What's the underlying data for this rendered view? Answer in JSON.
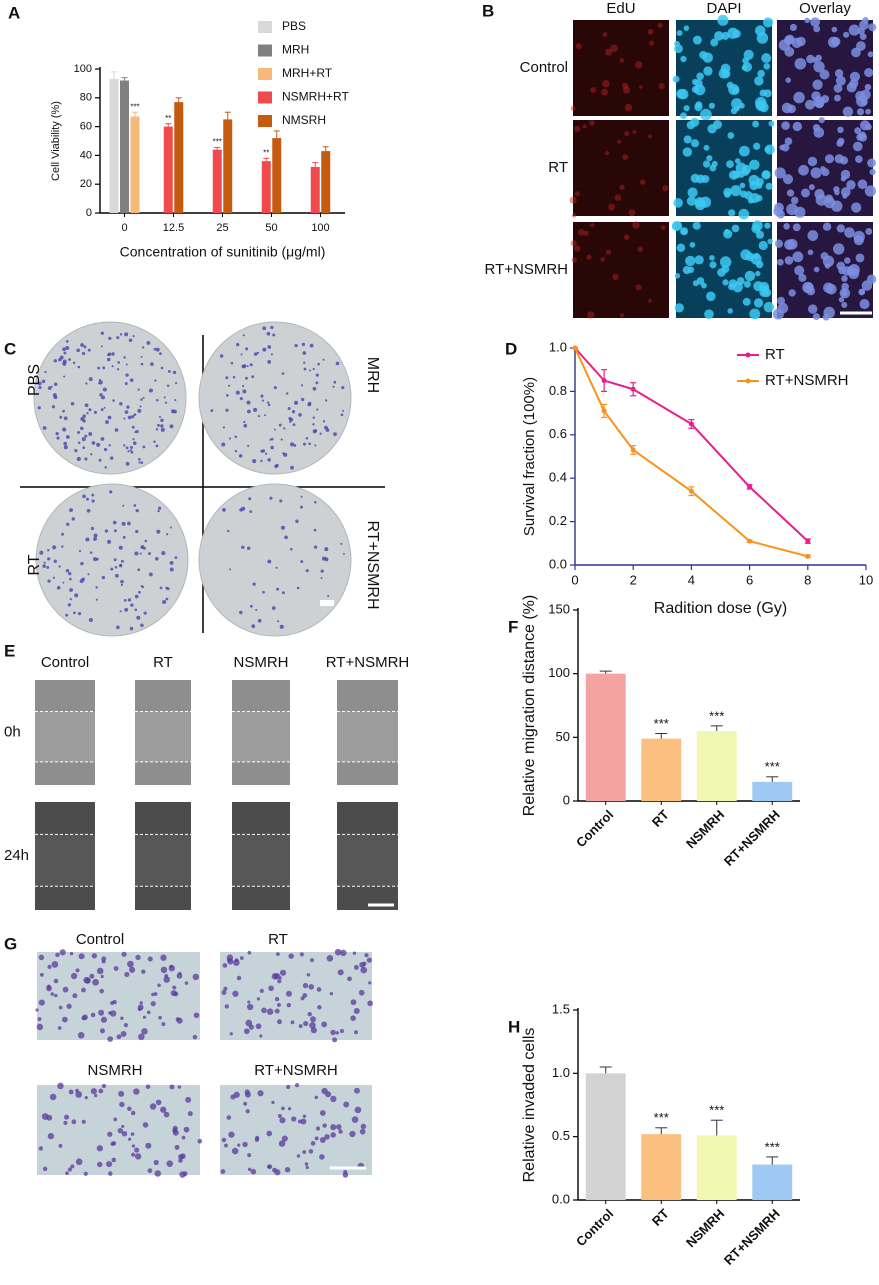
{
  "images": {
    "B": {
      "label": "B",
      "columns": [
        "EdU",
        "DAPI",
        "Overlay"
      ],
      "rows": [
        "Control",
        "RT",
        "RT+NSMRH"
      ]
    },
    "C": {
      "label": "C",
      "groups": [
        "PBS",
        "MRH",
        "RT",
        "RT+NSMRH"
      ]
    },
    "E": {
      "label": "E",
      "columns": [
        "Control",
        "RT",
        "NSMRH",
        "RT+NSMRH"
      ],
      "rows": [
        "0h",
        "24h"
      ]
    },
    "G": {
      "label": "G",
      "groups": [
        "Control",
        "RT",
        "NSMRH",
        "RT+NSMRH"
      ]
    }
  },
  "chart_data": [
    {
      "type": "grouped_bar",
      "panel_label": "A",
      "y_label": "Cell Viability (%)",
      "x_label": "Concentration of sunitinib (μg/ml)",
      "categories": [
        "0",
        "12.5",
        "25",
        "50",
        "100"
      ],
      "series": [
        {
          "name": "PBS",
          "color": "#d9d9d9",
          "values": [
            93,
            null,
            null,
            null,
            null
          ],
          "errors": [
            5,
            null,
            null,
            null,
            null
          ],
          "annotations": [
            null,
            null,
            null,
            null,
            null
          ]
        },
        {
          "name": "MRH",
          "color": "#808080",
          "values": [
            92,
            null,
            null,
            null,
            null
          ],
          "errors": [
            2,
            null,
            null,
            null,
            null
          ],
          "annotations": [
            null,
            null,
            null,
            null,
            null
          ]
        },
        {
          "name": "MRH+RT",
          "color": "#f5b97a",
          "values": [
            67,
            null,
            null,
            null,
            null
          ],
          "errors": [
            3,
            null,
            null,
            null,
            null
          ],
          "annotations": [
            "***",
            null,
            null,
            null,
            null
          ]
        },
        {
          "name": "NSMRH+RT",
          "color": "#f04a4f",
          "values": [
            null,
            60,
            44,
            36,
            32
          ],
          "errors": [
            null,
            2,
            1.5,
            2,
            3
          ],
          "annotations": [
            null,
            "**",
            "***",
            "**",
            null
          ]
        },
        {
          "name": "NMSRH",
          "color": "#c55a11",
          "values": [
            null,
            77,
            65,
            52,
            43
          ],
          "errors": [
            null,
            3,
            5,
            5,
            3
          ],
          "annotations": [
            null,
            null,
            null,
            null,
            null
          ]
        }
      ],
      "ylim": [
        0,
        100
      ],
      "yticks": [
        0,
        20,
        40,
        60,
        80,
        100
      ],
      "legend": "top-right"
    },
    {
      "type": "line",
      "panel_label": "D",
      "y_label": "Survival fraction (100%)",
      "x_label": "Radition dose (Gy)",
      "x": [
        0,
        1,
        2,
        4,
        6,
        8
      ],
      "series": [
        {
          "name": "RT",
          "color": "#e91e8c",
          "values": [
            1,
            0.85,
            0.81,
            0.65,
            0.36,
            0.11
          ],
          "errors": [
            0,
            0.05,
            0.03,
            0.02,
            0.01,
            0.01
          ]
        },
        {
          "name": "RT+NSMRH",
          "color": "#f7931e",
          "values": [
            1,
            0.71,
            0.53,
            0.34,
            0.11,
            0.04
          ],
          "errors": [
            0,
            0.03,
            0.02,
            0.02,
            0.005,
            0.005
          ]
        }
      ],
      "xlim": [
        0,
        10
      ],
      "xticks": [
        0,
        2,
        4,
        6,
        8,
        10
      ],
      "ylim": [
        0,
        1
      ],
      "yticks": [
        {
          "value": 0,
          "label": "0.0"
        },
        0.2,
        0.4,
        0.6,
        0.8,
        {
          "value": 1,
          "label": "1.0"
        }
      ],
      "axis_color": "#2e3192",
      "legend": "top-right"
    },
    {
      "type": "bar",
      "panel_label": "F",
      "y_label": "Relative migration distance (%)",
      "categories": [
        "Control",
        "RT",
        "NSMRH",
        "RT+NSMRH"
      ],
      "values": [
        100,
        49,
        55,
        15
      ],
      "errors": [
        2,
        4,
        4,
        4
      ],
      "annotations": [
        null,
        "***",
        "***",
        "***"
      ],
      "colors": [
        "#f4a3a3",
        "#fbbf80",
        "#f0f7b0",
        "#9ec9f4"
      ],
      "ylim": [
        0,
        150
      ],
      "yticks": [
        0,
        50,
        100,
        150
      ]
    },
    {
      "type": "bar",
      "panel_label": "H",
      "y_label": "Relative invaded cells",
      "categories": [
        "Control",
        "RT",
        "NSMRH",
        "RT+NSMRH"
      ],
      "values": [
        1,
        0.52,
        0.51,
        0.28
      ],
      "errors": [
        0.05,
        0.05,
        0.12,
        0.06
      ],
      "annotations": [
        null,
        "***",
        "***",
        "***"
      ],
      "colors": [
        "#d3d3d3",
        "#fbbf80",
        "#f0f7b0",
        "#9ec9f4"
      ],
      "ylim": [
        0,
        1.5
      ],
      "yticks": [
        {
          "value": 0,
          "label": "0.0"
        },
        0.5,
        {
          "value": 1,
          "label": "1.0"
        },
        1.5
      ]
    }
  ]
}
